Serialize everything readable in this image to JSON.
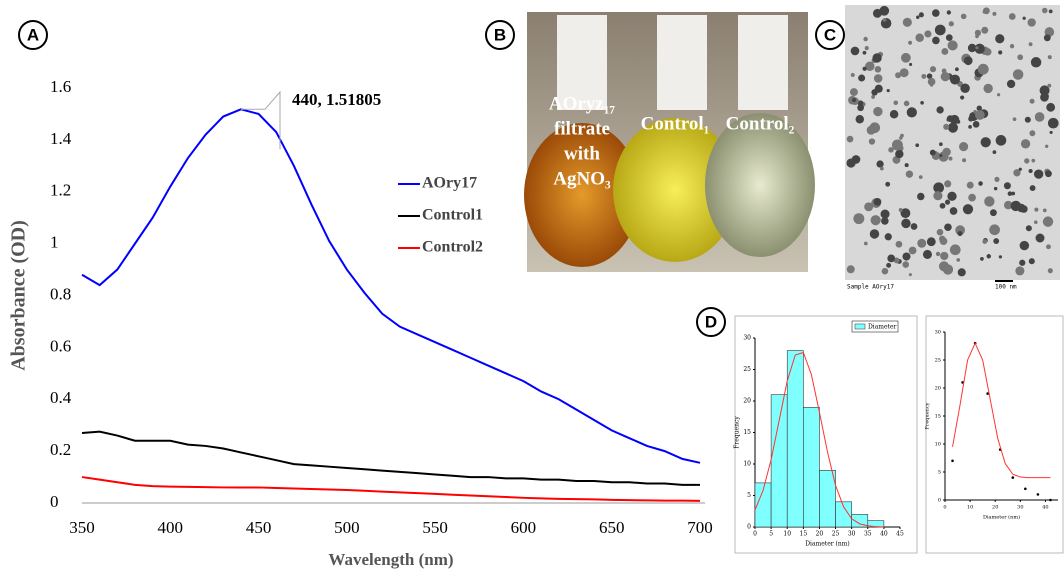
{
  "panel_labels": [
    "A",
    "B",
    "C",
    "D"
  ],
  "photos": {
    "B": {
      "labels": [
        [
          "AOryz₁₇",
          "filtrate",
          "with",
          "AgNO₃"
        ],
        [
          "Control₁"
        ],
        [
          "Control₂"
        ]
      ]
    },
    "C": {
      "captions": [
        "Sample AOry17",
        "100 nm"
      ]
    }
  },
  "chart_data": [
    {
      "type": "line",
      "x_label": "Wavelength (nm)",
      "y_label": "Absorbance (OD)",
      "x": [
        350,
        360,
        370,
        380,
        390,
        400,
        410,
        420,
        430,
        440,
        450,
        460,
        470,
        480,
        490,
        500,
        510,
        520,
        530,
        540,
        550,
        560,
        570,
        580,
        590,
        600,
        610,
        620,
        630,
        640,
        650,
        660,
        670,
        680,
        690,
        700
      ],
      "series": [
        {
          "name": "AOry17",
          "color": "#0000ff",
          "values": [
            0.88,
            0.84,
            0.9,
            1.0,
            1.1,
            1.22,
            1.33,
            1.42,
            1.49,
            1.518,
            1.5,
            1.43,
            1.3,
            1.15,
            1.01,
            0.9,
            0.81,
            0.73,
            0.68,
            0.65,
            0.62,
            0.59,
            0.56,
            0.53,
            0.5,
            0.47,
            0.43,
            0.4,
            0.36,
            0.32,
            0.28,
            0.25,
            0.22,
            0.2,
            0.17,
            0.155
          ]
        },
        {
          "name": "Control1",
          "color": "#000000",
          "values": [
            0.27,
            0.275,
            0.26,
            0.24,
            0.24,
            0.24,
            0.225,
            0.22,
            0.21,
            0.195,
            0.18,
            0.165,
            0.15,
            0.145,
            0.14,
            0.135,
            0.13,
            0.125,
            0.12,
            0.115,
            0.11,
            0.105,
            0.1,
            0.1,
            0.095,
            0.095,
            0.09,
            0.09,
            0.085,
            0.085,
            0.08,
            0.08,
            0.075,
            0.075,
            0.07,
            0.07
          ]
        },
        {
          "name": "Control2",
          "color": "#ff0000",
          "values": [
            0.1,
            0.09,
            0.08,
            0.07,
            0.065,
            0.063,
            0.062,
            0.061,
            0.06,
            0.06,
            0.06,
            0.058,
            0.056,
            0.054,
            0.052,
            0.05,
            0.047,
            0.044,
            0.041,
            0.038,
            0.035,
            0.032,
            0.029,
            0.026,
            0.023,
            0.02,
            0.018,
            0.016,
            0.015,
            0.014,
            0.012,
            0.011,
            0.01,
            0.009,
            0.009,
            0.008
          ]
        }
      ],
      "xlim": [
        350,
        700
      ],
      "xticks": [
        350,
        400,
        450,
        500,
        550,
        600,
        650,
        700
      ],
      "ylim": [
        0,
        1.6
      ],
      "yticks": [
        0,
        0.2,
        0.4,
        0.6,
        0.8,
        1,
        1.2,
        1.4,
        1.6
      ],
      "annotation": {
        "text": "440, 1.51805",
        "x": 440,
        "y": 1.51805
      }
    },
    {
      "type": "histogram",
      "x_label": "Diameter (nm)",
      "y_label": "Frequency",
      "bins": [
        0,
        5,
        10,
        15,
        20,
        25,
        30,
        35,
        40
      ],
      "series": [
        {
          "name": "Diameter",
          "color": "#80ffff",
          "values": [
            7,
            21,
            28,
            19,
            9,
            4,
            2,
            1
          ]
        }
      ],
      "fit": {
        "color": "#ff3333",
        "x": [
          0,
          2.5,
          5,
          7.5,
          10,
          12.5,
          15,
          17.5,
          20,
          22.5,
          25,
          27.5,
          30,
          32.5,
          35,
          37.5,
          40
        ],
        "values": [
          2.7,
          5.8,
          10.7,
          16.9,
          23.2,
          27.3,
          27.7,
          24.2,
          18.2,
          11.9,
          6.6,
          3.2,
          1.3,
          0.5,
          0.2,
          0.05,
          0
        ]
      },
      "xlim": [
        0,
        45
      ],
      "xticks": [
        0,
        5,
        10,
        15,
        20,
        25,
        30,
        35,
        40,
        45
      ],
      "ylim": [
        0,
        30
      ],
      "yticks": [
        0,
        5,
        10,
        15,
        20,
        25,
        30
      ]
    },
    {
      "type": "scatter",
      "x_label": "Diameter (nm)",
      "y_label": "Frequency",
      "x": [
        3,
        7,
        12,
        17,
        22,
        27,
        32,
        37,
        42
      ],
      "values": [
        7,
        21,
        28,
        19,
        9,
        4,
        2,
        1,
        0
      ],
      "color": "#000000",
      "fit": {
        "color": "#ff3333",
        "x": [
          3,
          6,
          9,
          12,
          15,
          18,
          21,
          24,
          27,
          30,
          33,
          36,
          39,
          42
        ],
        "values": [
          9.5,
          17,
          25,
          28,
          25,
          18,
          11,
          6.5,
          4.6,
          4.1,
          4,
          4,
          4,
          4
        ]
      },
      "xlim": [
        0,
        45
      ],
      "xticks": [
        0,
        10,
        20,
        30,
        40
      ],
      "ylim": [
        0,
        30
      ],
      "yticks": [
        0,
        5,
        10,
        15,
        20,
        25,
        30
      ]
    }
  ]
}
